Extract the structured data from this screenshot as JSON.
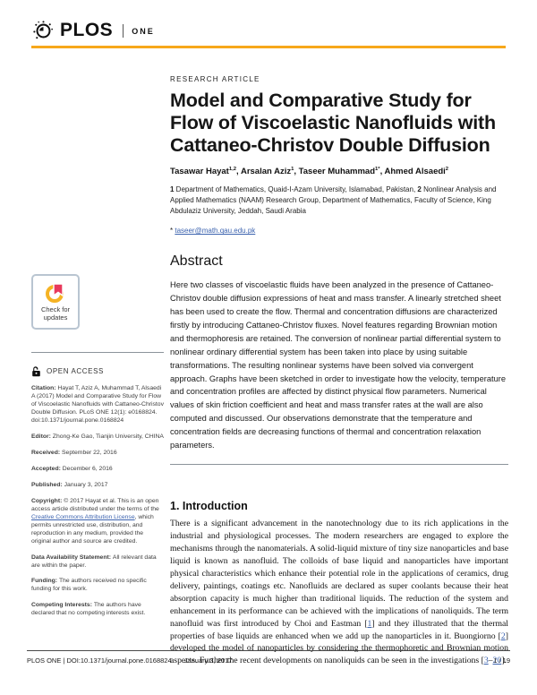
{
  "colors": {
    "accent_orange": "#F7A81B",
    "link_blue": "#3C63AF"
  },
  "header": {
    "logo_text": "PLOS",
    "logo_sub": "ONE"
  },
  "sidebar": {
    "check_updates": {
      "line1": "Check for",
      "line2": "updates"
    },
    "open_access_label": "OPEN ACCESS",
    "blocks": {
      "citation": [
        {
          "text": "Citation: ",
          "bold": true
        },
        {
          "text": "Hayat T, Aziz A, Muhammad T, Alsaedi A (2017) Model and Comparative Study for Flow of Viscoelastic Nanofluids with Cattaneo-Christov Double Diffusion. PLoS ONE 12(1): e0168824. doi:10.1371/journal.pone.0168824"
        }
      ],
      "editor": [
        {
          "text": "Editor: ",
          "bold": true
        },
        {
          "text": "Zhong-Ke Gao, Tianjin University, CHINA"
        }
      ],
      "received": [
        {
          "text": "Received: ",
          "bold": true
        },
        {
          "text": "September 22, 2016"
        }
      ],
      "accepted": [
        {
          "text": "Accepted: ",
          "bold": true
        },
        {
          "text": "December 6, 2016"
        }
      ],
      "published": [
        {
          "text": "Published: ",
          "bold": true
        },
        {
          "text": "January 3, 2017"
        }
      ],
      "copyright": [
        {
          "text": "Copyright: ",
          "bold": true
        },
        {
          "text": "© 2017 Hayat et al. This is an open access article distributed under the terms of the "
        },
        {
          "text": "Creative Commons Attribution License",
          "link": true
        },
        {
          "text": ", which permits unrestricted use, distribution, and reproduction in any medium, provided the original author and source are credited."
        }
      ],
      "data_availability": [
        {
          "text": "Data Availability Statement: ",
          "bold": true
        },
        {
          "text": "All relevant data are within the paper."
        }
      ],
      "funding": [
        {
          "text": "Funding: ",
          "bold": true
        },
        {
          "text": "The authors received no specific funding for this work."
        }
      ],
      "competing": [
        {
          "text": "Competing Interests: ",
          "bold": true
        },
        {
          "text": "The authors have declared that no competing interests exist."
        }
      ]
    }
  },
  "article": {
    "kicker": "RESEARCH ARTICLE",
    "title": "Model and Comparative Study for Flow of Viscoelastic Nanofluids with Cattaneo-Christov Double Diffusion",
    "authors": [
      {
        "text": "Tasawar Hayat"
      },
      {
        "text": "1,2",
        "sup": true
      },
      {
        "text": ", "
      },
      {
        "text": "Arsalan Aziz"
      },
      {
        "text": "1",
        "sup": true
      },
      {
        "text": ", "
      },
      {
        "text": "Taseer Muhammad"
      },
      {
        "text": "1*",
        "sup": true
      },
      {
        "text": ", "
      },
      {
        "text": "Ahmed Alsaedi"
      },
      {
        "text": "2",
        "sup": true
      }
    ],
    "affiliations": [
      {
        "text": "1 ",
        "bold": true
      },
      {
        "text": "Department of Mathematics, Quaid-I-Azam University, Islamabad, Pakistan, "
      },
      {
        "text": "2 ",
        "bold": true
      },
      {
        "text": "Nonlinear Analysis and Applied Mathematics (NAAM) Research Group, Department of Mathematics, Faculty of Science, King Abdulaziz University, Jeddah, Saudi Arabia"
      }
    ],
    "email": [
      {
        "text": "* "
      },
      {
        "text": "taseer@math.qau.edu.pk",
        "link": true
      }
    ],
    "abstract": {
      "heading": "Abstract",
      "text": "Here two classes of viscoelastic fluids have been analyzed in the presence of Cattaneo-Christov double diffusion expressions of heat and mass transfer. A linearly stretched sheet has been used to create the flow. Thermal and concentration diffusions are characterized firstly by introducing Cattaneo-Christov fluxes. Novel features regarding Brownian motion and thermophoresis are retained. The conversion of nonlinear partial differential system to nonlinear ordinary differential system has been taken into place by using suitable transformations. The resulting nonlinear systems have been solved via convergent approach. Graphs have been sketched in order to investigate how the velocity, temperature and concentration profiles are affected by distinct physical flow parameters. Numerical values of skin friction coefficient and heat and mass transfer rates at the wall are also computed and discussed. Our observations demonstrate that the temperature and concentration fields are decreasing functions of thermal and concentration relaxation parameters."
    },
    "introduction": {
      "heading": "1. Introduction",
      "body": [
        {
          "text": "There is a significant advancement in the nanotechnology due to its rich applications in the industrial and physiological processes. The modern researchers are engaged to explore the mechanisms through the nanomaterials. A solid-liquid mixture of tiny size nanoparticles and base liquid is known as nanofluid. The colloids of base liquid and nanoparticles have important physical characteristics which enhance their potential role in the applications of ceramics, drug delivery, paintings, coatings etc. Nanofluids are declared as super coolants because their heat absorption capacity is much higher than traditional liquids. The reduction of the system and enhancement in its performance can be achieved with the implications of nanoliquids. The term nanofluid was first introduced by Choi and Eastman ["
        },
        {
          "text": "1",
          "link": true
        },
        {
          "text": "] and they illustrated that the thermal properties of base liquids are enhanced when we add up the nanoparticles in it. Buongiorno ["
        },
        {
          "text": "2",
          "link": true
        },
        {
          "text": "] developed the model of nanoparticles by considering the thermophoretic and Brownian motion aspects. Further the recent developments on nanoliquids can be seen in the investigations ["
        },
        {
          "text": "3",
          "link": true
        },
        {
          "text": "–"
        },
        {
          "text": "20",
          "link": true
        },
        {
          "text": "]."
        }
      ]
    }
  },
  "footer": {
    "journal_doi": "PLOS ONE | DOI:10.1371/journal.pone.0168824",
    "date": "January 3, 2017",
    "page_number": "1 / 19"
  }
}
